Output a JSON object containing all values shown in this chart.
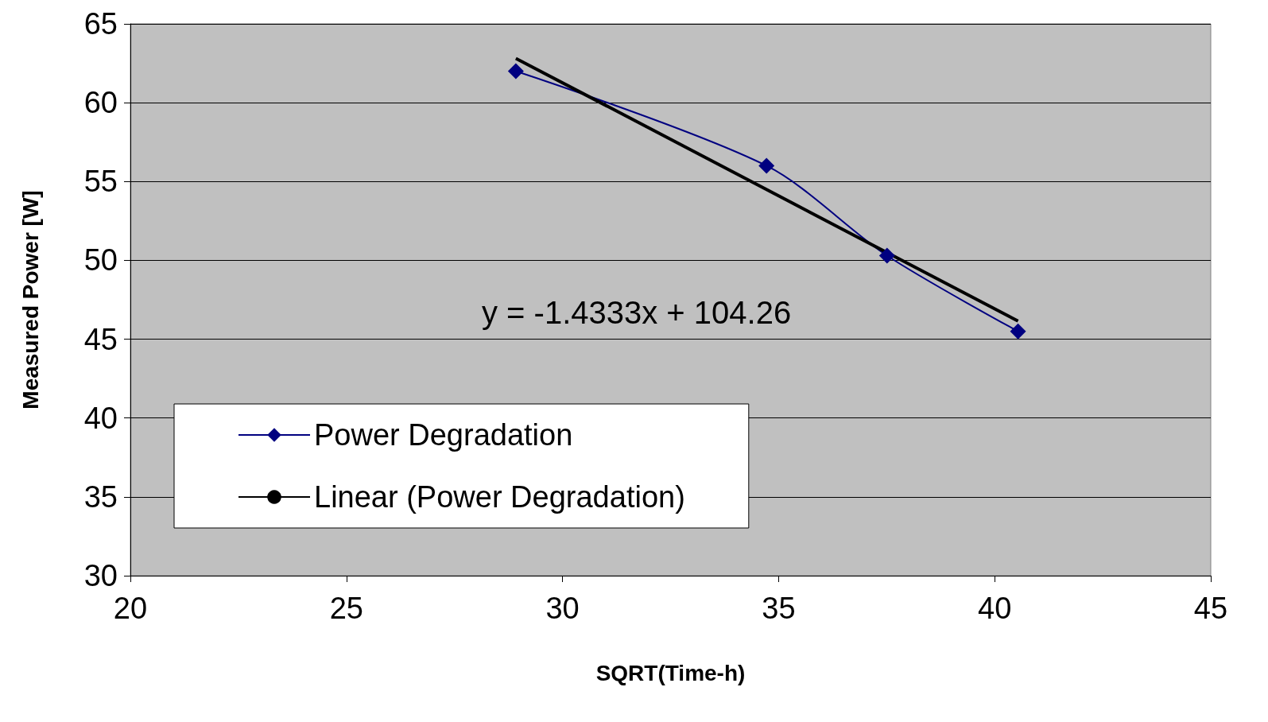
{
  "chart_data": {
    "type": "line",
    "xlabel": "SQRT(Time-h)",
    "ylabel": "Measured Power [W]",
    "xlim": [
      20,
      45
    ],
    "xticks": [
      20,
      25,
      30,
      35,
      40,
      45
    ],
    "ylim": [
      30,
      65
    ],
    "yticks": [
      30,
      35,
      40,
      45,
      50,
      55,
      60,
      65
    ],
    "grid": "y",
    "legend": "bottom left",
    "series": [
      {
        "name": "Power Degradation",
        "color": "#000080",
        "marker": "diamond",
        "x": [
          28.92,
          34.72,
          37.51,
          40.54
        ],
        "values": [
          62.0,
          56.0,
          50.3,
          45.5
        ]
      },
      {
        "name": "Linear (Power Degradation)",
        "color": "#000000",
        "marker": "none",
        "x": [
          28.92,
          40.54
        ],
        "values": [
          62.81,
          46.15
        ]
      }
    ],
    "annotations": [
      "y = -1.4333x + 104.26"
    ]
  }
}
